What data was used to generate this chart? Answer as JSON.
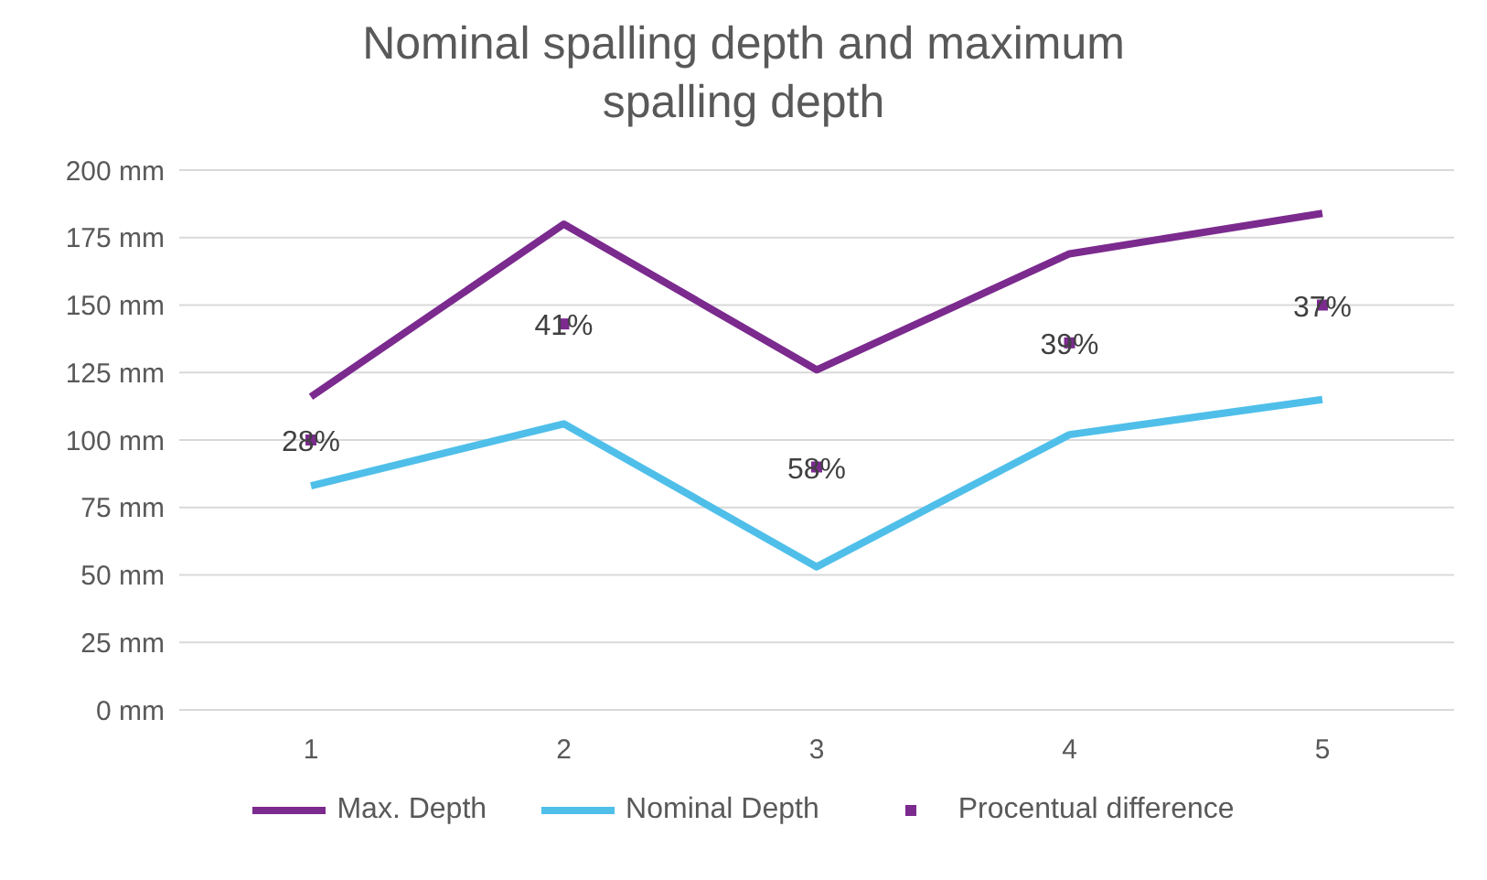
{
  "chart_data": {
    "type": "line",
    "title": "Nominal spalling depth and maximum spalling depth",
    "categories": [
      "1",
      "2",
      "3",
      "4",
      "5"
    ],
    "series": [
      {
        "name": "Max. Depth",
        "color": "#7b2a8e",
        "values": [
          116,
          180,
          126,
          169,
          184
        ]
      },
      {
        "name": "Nominal Depth",
        "color": "#4fbfe9",
        "values": [
          83,
          106,
          53,
          102,
          115
        ]
      },
      {
        "name": "Procentual difference",
        "type": "scatter",
        "color": "#7b2a8e",
        "marker": "square",
        "values": [
          100,
          143,
          90,
          136,
          150
        ]
      }
    ],
    "annotations": [
      {
        "text": "28%",
        "x": "1",
        "y": 100
      },
      {
        "text": "41%",
        "x": "2",
        "y": 143
      },
      {
        "text": "58%",
        "x": "3",
        "y": 90
      },
      {
        "text": "39%",
        "x": "4",
        "y": 136
      },
      {
        "text": "37%",
        "x": "5",
        "y": 150
      }
    ],
    "ylim": [
      0,
      200
    ],
    "yticks": [
      {
        "value": 0,
        "label": "0 mm"
      },
      {
        "value": 25,
        "label": "25 mm"
      },
      {
        "value": 50,
        "label": "50 mm"
      },
      {
        "value": 75,
        "label": "75 mm"
      },
      {
        "value": 100,
        "label": "100 mm"
      },
      {
        "value": 125,
        "label": "125 mm"
      },
      {
        "value": 150,
        "label": "150 mm"
      },
      {
        "value": 175,
        "label": "175 mm"
      },
      {
        "value": 200,
        "label": "200 mm"
      }
    ],
    "grid": "y",
    "legend": "bottom"
  }
}
